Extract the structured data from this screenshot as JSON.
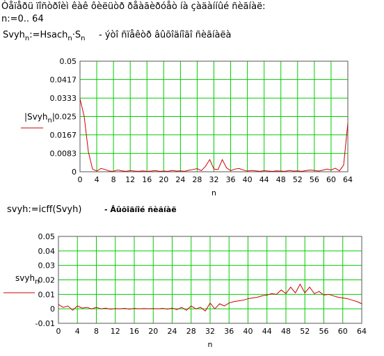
{
  "intro": "Òåïåðü ïîñòðîèì êàê ôèëüòð ðåàãèðóåò íà çàäàííûé ñèãíàë:",
  "range_def": "n:=0.. 64",
  "formula1": [
    "Svyh",
    "n",
    ":=Hsach",
    "n",
    "·S",
    "n"
  ],
  "comment1": "- ýòî ñïåêòð âûõîäíîãî ñèãíàëà",
  "formula2": "svyh:=icff(Svyh)",
  "comment2": "- Âûõîäíîé ñèãíàë",
  "chart_data": [
    {
      "type": "line",
      "xlabel": "n",
      "ylabel": [
        "|Svyh",
        "n",
        "|"
      ],
      "color": "#d00000",
      "grid": true,
      "grid_color": "#00cc00",
      "xlim": [
        0,
        64
      ],
      "xticks": [
        0,
        4,
        8,
        12,
        16,
        20,
        24,
        28,
        32,
        36,
        40,
        44,
        48,
        52,
        56,
        60,
        64
      ],
      "ylim": [
        0,
        0.05
      ],
      "yticks": [
        0,
        0.0083,
        0.0167,
        0.025,
        0.0333,
        0.0417,
        0.05
      ],
      "values": [
        0.033,
        0.025,
        0.009,
        0.0012,
        0.0003,
        0.0015,
        0.001,
        0.0003,
        0.0002,
        0.0008,
        0.0004,
        0.0002,
        0.0005,
        0.0003,
        0.0002,
        0.0004,
        0.0002,
        0.0003,
        0.0005,
        0.0002,
        0.0003,
        0.0002,
        0.0006,
        0.0003,
        0.0004,
        0.0002,
        0.0007,
        0.001,
        0.0014,
        0.0005,
        0.0025,
        0.0055,
        0.0012,
        0.001,
        0.0055,
        0.0018,
        0.0005,
        0.0012,
        0.0015,
        0.0008,
        0.0003,
        0.0006,
        0.0004,
        0.0002,
        0.0005,
        0.0003,
        0.0002,
        0.0004,
        0.0003,
        0.0002,
        0.0006,
        0.0003,
        0.0004,
        0.0002,
        0.0005,
        0.0008,
        0.0006,
        0.0003,
        0.0007,
        0.0012,
        0.0008,
        0.0016,
        0.0004,
        0.003,
        0.022
      ]
    },
    {
      "type": "line",
      "xlabel": "n",
      "ylabel": [
        "svyh",
        "n"
      ],
      "color": "#d00000",
      "grid": true,
      "grid_color": "#00cc00",
      "xlim": [
        0,
        64
      ],
      "xticks": [
        0,
        4,
        8,
        12,
        16,
        20,
        24,
        28,
        32,
        36,
        40,
        44,
        48,
        52,
        56,
        60,
        64
      ],
      "ylim": [
        -0.01,
        0.05
      ],
      "yticks": [
        -0.01,
        0,
        0.01,
        0.02,
        0.03,
        0.04,
        0.05
      ],
      "values": [
        0.003,
        0.001,
        0.002,
        -0.001,
        0.002,
        0.0005,
        0.001,
        0,
        0.001,
        0,
        0.0005,
        -0.0003,
        0.0002,
        0,
        0.0003,
        -0.0002,
        0.0003,
        0,
        0.0002,
        0.0001,
        0.0002,
        0,
        0.0003,
        -0.0002,
        0.0005,
        -0.0005,
        0.001,
        -0.001,
        0.002,
        0,
        0.001,
        -0.0015,
        0.004,
        0,
        0.0035,
        0.002,
        0.004,
        0.005,
        0.0055,
        0.006,
        0.007,
        0.0075,
        0.008,
        0.009,
        0.0095,
        0.0105,
        0.01,
        0.013,
        0.0105,
        0.015,
        0.011,
        0.017,
        0.011,
        0.015,
        0.0105,
        0.012,
        0.0095,
        0.01,
        0.009,
        0.008,
        0.0075,
        0.007,
        0.006,
        0.005,
        0.0035
      ]
    }
  ]
}
